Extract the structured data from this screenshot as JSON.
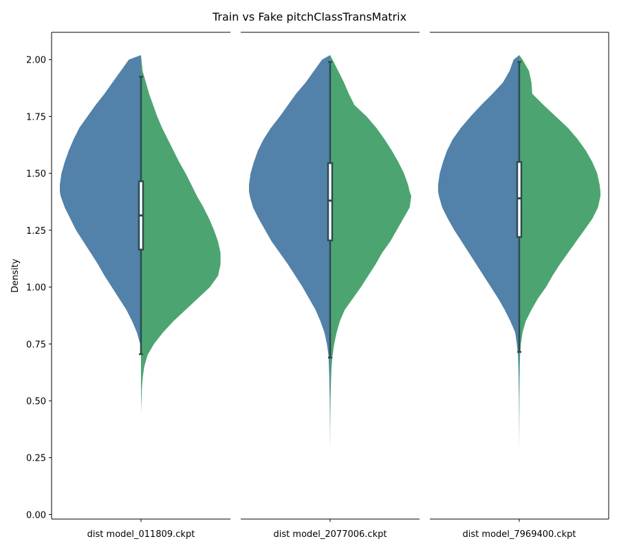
{
  "figure": {
    "title": "Train vs Fake pitchClassTransMatrix"
  },
  "colors": {
    "train": "#5282a9",
    "fake": "#4ca571",
    "box": "#2d4b4f",
    "median": "#ffffff",
    "axis": "#000000"
  },
  "chart_data": [
    {
      "type": "violin",
      "title": "",
      "xlabel": "",
      "ylabel": "Density",
      "category": "dist model_011809.ckpt",
      "ylim": [
        -0.02,
        2.12
      ],
      "yticks": [
        "0.00",
        "0.25",
        "0.50",
        "0.75",
        "1.00",
        "1.25",
        "1.50",
        "1.75",
        "2.00"
      ],
      "split": true,
      "grid": false,
      "series": [
        {
          "side": "left",
          "y": [
            2.02,
            2.0,
            1.95,
            1.9,
            1.85,
            1.8,
            1.75,
            1.7,
            1.65,
            1.6,
            1.55,
            1.5,
            1.45,
            1.42,
            1.4,
            1.35,
            1.3,
            1.25,
            1.2,
            1.15,
            1.1,
            1.05,
            1.0,
            0.95,
            0.9,
            0.85,
            0.8,
            0.75,
            0.7
          ],
          "w": [
            0.0,
            0.15,
            0.25,
            0.35,
            0.45,
            0.56,
            0.66,
            0.76,
            0.83,
            0.89,
            0.94,
            0.98,
            1.0,
            1.0,
            0.99,
            0.94,
            0.87,
            0.8,
            0.71,
            0.62,
            0.53,
            0.45,
            0.36,
            0.27,
            0.18,
            0.11,
            0.05,
            0.01,
            0.0
          ]
        },
        {
          "side": "right",
          "y": [
            2.02,
            1.95,
            1.9,
            1.85,
            1.8,
            1.75,
            1.7,
            1.65,
            1.6,
            1.55,
            1.5,
            1.45,
            1.4,
            1.35,
            1.3,
            1.25,
            1.2,
            1.15,
            1.1,
            1.05,
            1.0,
            0.95,
            0.9,
            0.85,
            0.8,
            0.75,
            0.7,
            0.65,
            0.6,
            0.55,
            0.5,
            0.45
          ],
          "w": [
            0.0,
            0.02,
            0.06,
            0.1,
            0.15,
            0.2,
            0.26,
            0.33,
            0.4,
            0.47,
            0.55,
            0.62,
            0.69,
            0.77,
            0.84,
            0.9,
            0.95,
            0.98,
            0.98,
            0.95,
            0.85,
            0.7,
            0.55,
            0.4,
            0.27,
            0.16,
            0.08,
            0.04,
            0.02,
            0.01,
            0.005,
            0.0
          ]
        }
      ],
      "box": {
        "q1": 1.165,
        "median": 1.315,
        "q3": 1.465,
        "whisker_low": 0.705,
        "whisker_high": 1.925
      }
    },
    {
      "type": "violin",
      "title": "",
      "xlabel": "",
      "ylabel": "",
      "category": "dist model_2077006.ckpt",
      "ylim": [
        -0.02,
        2.12
      ],
      "split": true,
      "grid": false,
      "series": [
        {
          "side": "left",
          "y": [
            2.02,
            2.0,
            1.95,
            1.9,
            1.85,
            1.8,
            1.75,
            1.7,
            1.65,
            1.6,
            1.55,
            1.5,
            1.45,
            1.42,
            1.4,
            1.35,
            1.3,
            1.25,
            1.2,
            1.15,
            1.1,
            1.05,
            1.0,
            0.95,
            0.9,
            0.85,
            0.8,
            0.75,
            0.7,
            0.6,
            0.5,
            0.4,
            0.27
          ],
          "w": [
            0.0,
            0.1,
            0.2,
            0.3,
            0.42,
            0.52,
            0.62,
            0.73,
            0.82,
            0.89,
            0.94,
            0.98,
            1.0,
            1.0,
            0.99,
            0.95,
            0.88,
            0.8,
            0.72,
            0.62,
            0.52,
            0.43,
            0.34,
            0.26,
            0.18,
            0.12,
            0.07,
            0.04,
            0.02,
            0.01,
            0.005,
            0.002,
            0.0
          ]
        },
        {
          "side": "right",
          "y": [
            2.02,
            2.0,
            1.95,
            1.9,
            1.85,
            1.8,
            1.75,
            1.7,
            1.65,
            1.6,
            1.55,
            1.5,
            1.45,
            1.42,
            1.4,
            1.35,
            1.3,
            1.25,
            1.2,
            1.15,
            1.1,
            1.05,
            1.0,
            0.95,
            0.9,
            0.85,
            0.8,
            0.75,
            0.7,
            0.65,
            0.6,
            0.55,
            0.5,
            0.45,
            0.4,
            0.35,
            0.3
          ],
          "w": [
            0.0,
            0.03,
            0.1,
            0.17,
            0.23,
            0.3,
            0.45,
            0.57,
            0.67,
            0.76,
            0.84,
            0.91,
            0.96,
            0.98,
            1.0,
            0.98,
            0.9,
            0.82,
            0.74,
            0.64,
            0.56,
            0.47,
            0.38,
            0.28,
            0.18,
            0.12,
            0.08,
            0.05,
            0.03,
            0.018,
            0.012,
            0.008,
            0.005,
            0.003,
            0.002,
            0.001,
            0.0
          ]
        }
      ],
      "box": {
        "q1": 1.205,
        "median": 1.38,
        "q3": 1.545,
        "whisker_low": 0.69,
        "whisker_high": 1.99
      }
    },
    {
      "type": "violin",
      "title": "",
      "xlabel": "",
      "ylabel": "",
      "category": "dist model_7969400.ckpt",
      "ylim": [
        -0.02,
        2.12
      ],
      "split": true,
      "grid": false,
      "series": [
        {
          "side": "left",
          "y": [
            2.02,
            2.0,
            1.95,
            1.9,
            1.85,
            1.8,
            1.75,
            1.7,
            1.65,
            1.6,
            1.55,
            1.5,
            1.45,
            1.42,
            1.4,
            1.35,
            1.3,
            1.25,
            1.2,
            1.15,
            1.1,
            1.05,
            1.0,
            0.95,
            0.9,
            0.85,
            0.8,
            0.75,
            0.7,
            0.6,
            0.5,
            0.4,
            0.27
          ],
          "w": [
            0.0,
            0.07,
            0.12,
            0.2,
            0.33,
            0.47,
            0.6,
            0.72,
            0.82,
            0.89,
            0.94,
            0.98,
            1.0,
            1.0,
            0.99,
            0.95,
            0.88,
            0.8,
            0.71,
            0.62,
            0.53,
            0.44,
            0.35,
            0.26,
            0.18,
            0.11,
            0.05,
            0.03,
            0.015,
            0.008,
            0.004,
            0.002,
            0.0
          ]
        },
        {
          "side": "right",
          "y": [
            2.02,
            2.0,
            1.95,
            1.9,
            1.85,
            1.8,
            1.75,
            1.7,
            1.65,
            1.6,
            1.55,
            1.5,
            1.45,
            1.42,
            1.4,
            1.35,
            1.3,
            1.25,
            1.2,
            1.15,
            1.1,
            1.05,
            1.0,
            0.95,
            0.9,
            0.85,
            0.8,
            0.75,
            0.7,
            0.65,
            0.6,
            0.55,
            0.5,
            0.45,
            0.4,
            0.35,
            0.3
          ],
          "w": [
            0.0,
            0.04,
            0.12,
            0.15,
            0.16,
            0.3,
            0.45,
            0.6,
            0.72,
            0.82,
            0.9,
            0.96,
            0.99,
            1.0,
            1.0,
            0.97,
            0.9,
            0.8,
            0.7,
            0.6,
            0.5,
            0.41,
            0.33,
            0.23,
            0.15,
            0.08,
            0.04,
            0.02,
            0.01,
            0.006,
            0.004,
            0.003,
            0.002,
            0.0015,
            0.001,
            0.0005,
            0.0
          ]
        }
      ],
      "box": {
        "q1": 1.22,
        "median": 1.39,
        "q3": 1.55,
        "whisker_low": 0.715,
        "whisker_high": 1.99
      }
    }
  ]
}
